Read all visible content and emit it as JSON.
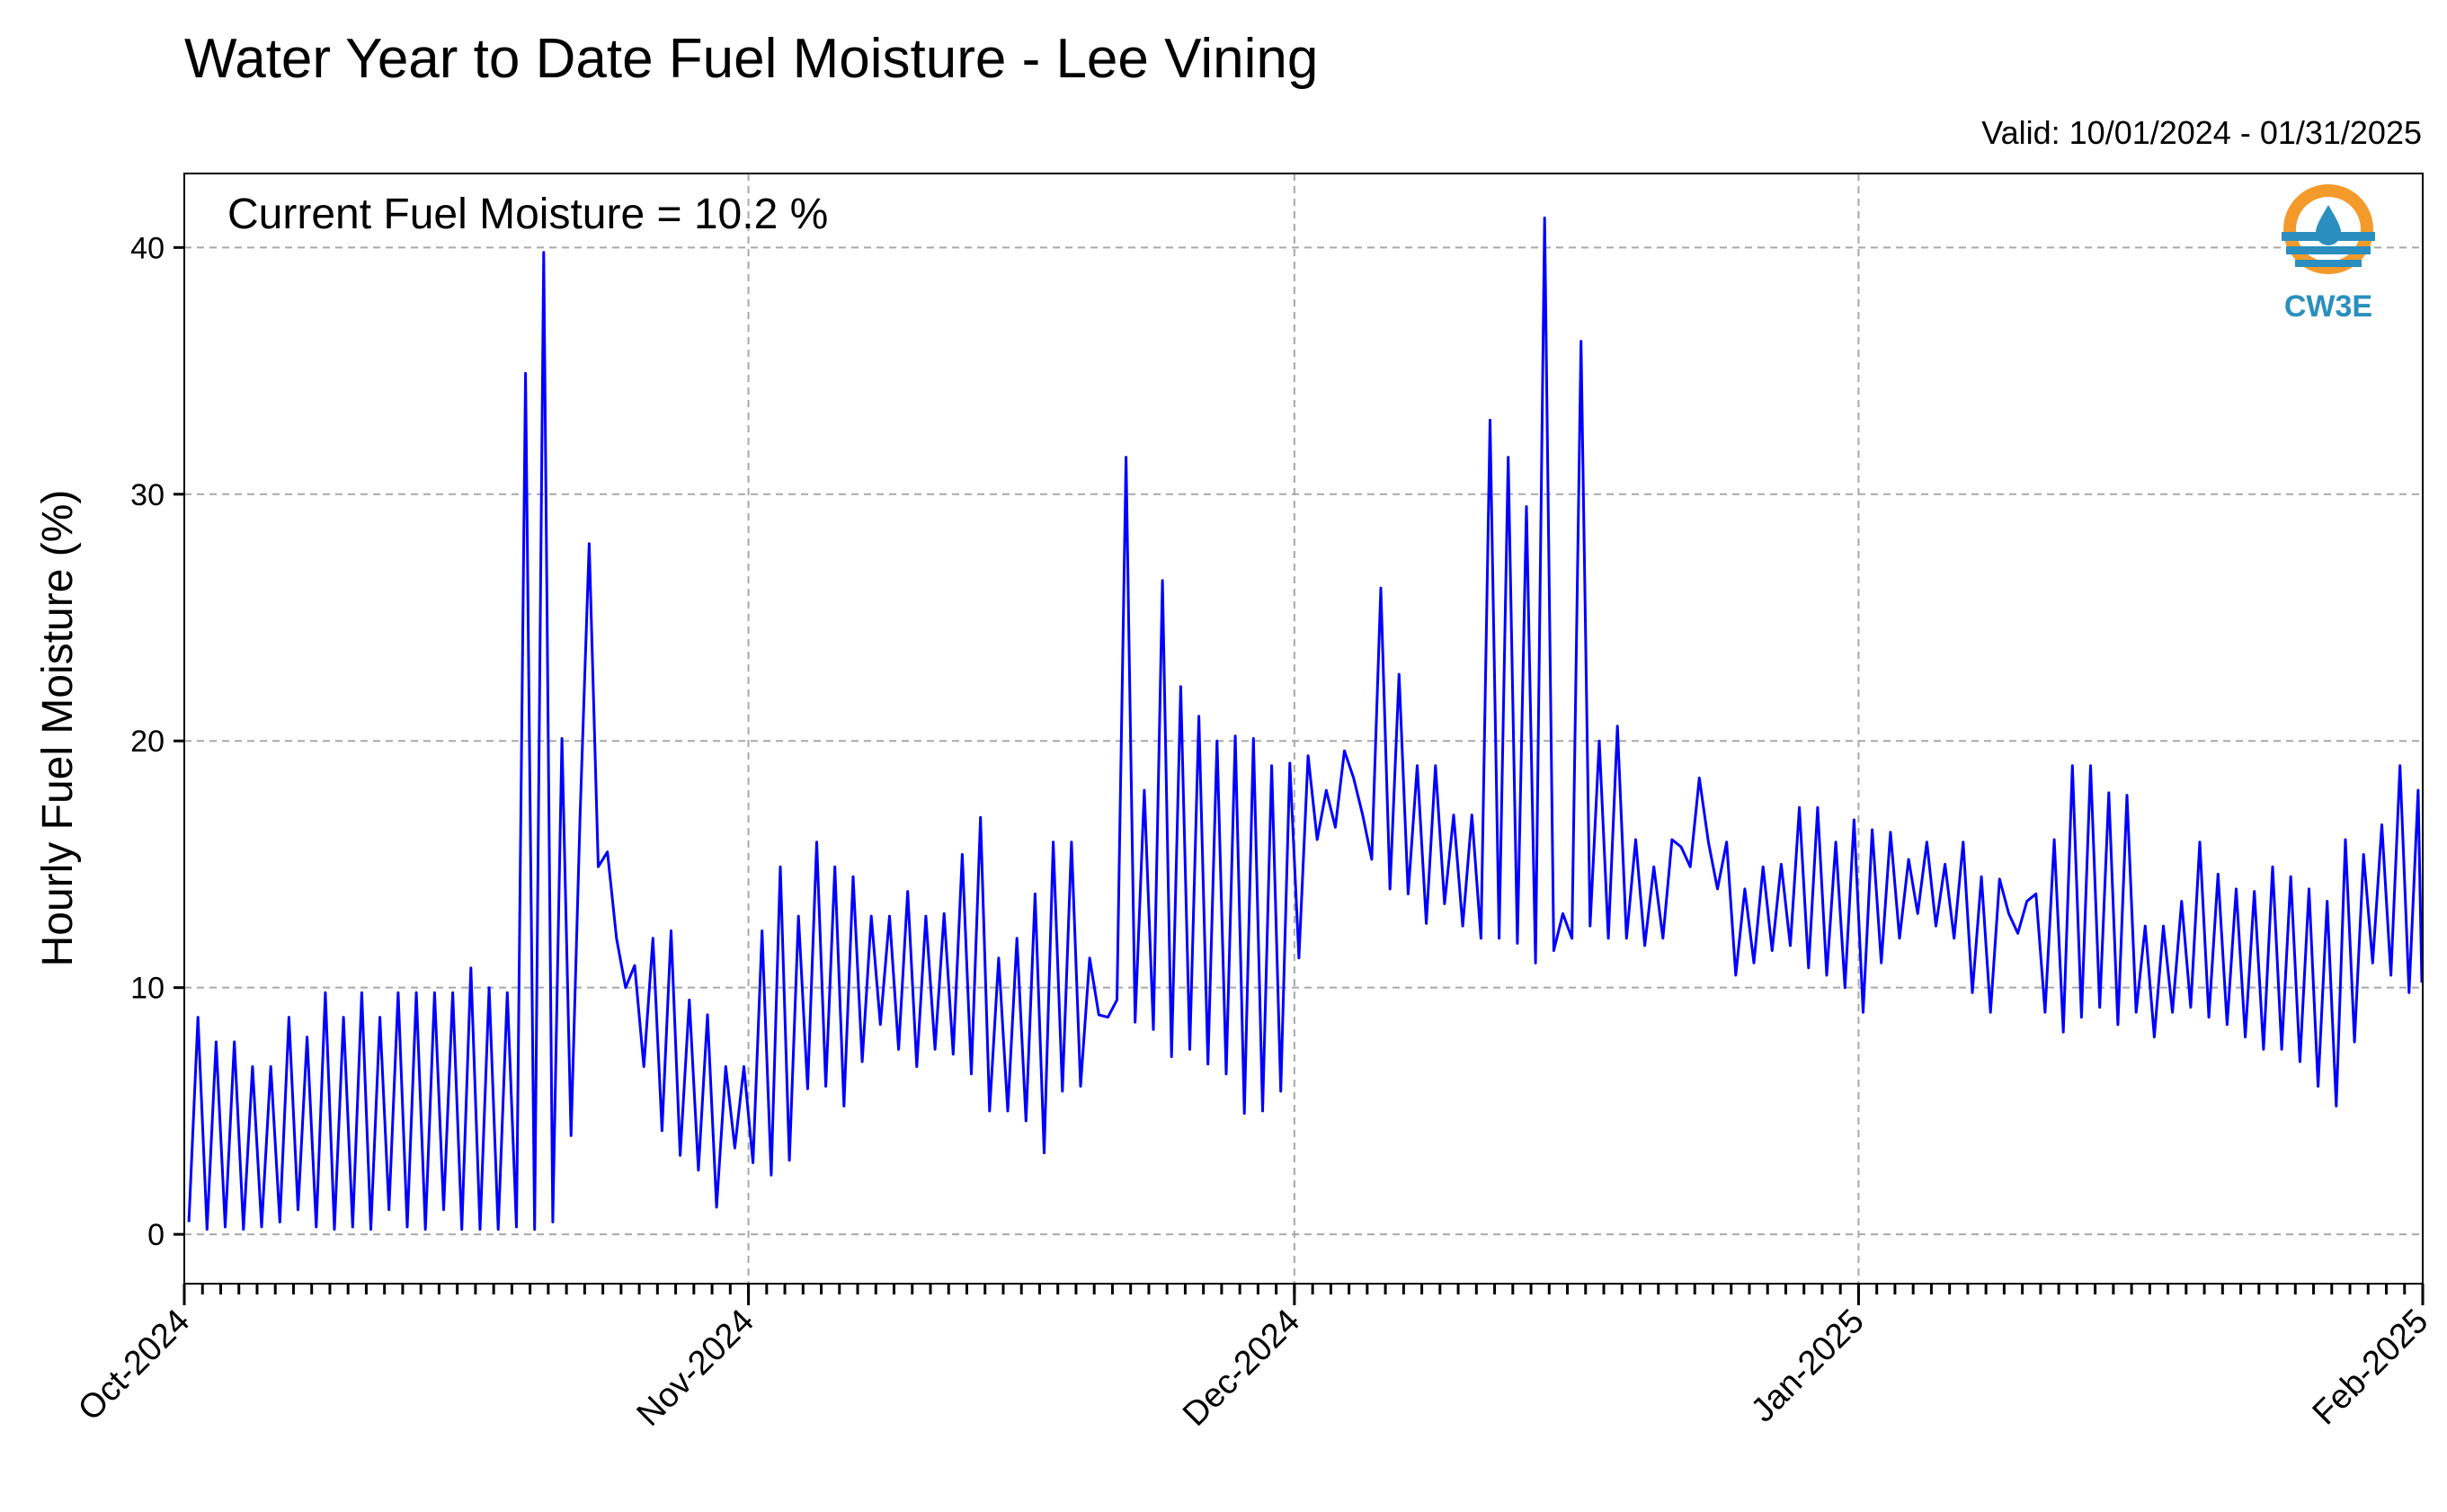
{
  "chart_data": {
    "type": "line",
    "title": "Water Year to Date Fuel Moisture - Lee Vining",
    "subtitle": "Valid: 10/01/2024 - 01/31/2025",
    "annotation": "Current Fuel Moisture = 10.2 %",
    "xlabel": "",
    "ylabel": "Hourly Fuel Moisture (%)",
    "x_range": [
      "2024-10-01",
      "2025-02-01"
    ],
    "ylim": [
      -2,
      43
    ],
    "y_ticks": [
      0,
      10,
      20,
      30,
      40
    ],
    "x_tick_labels": [
      "Oct-2024",
      "Nov-2024",
      "Dec-2024",
      "Jan-2025",
      "Feb-2025"
    ],
    "x_ticks": [
      "2024-10-01",
      "2024-11-01",
      "2024-12-01",
      "2025-01-01",
      "2025-02-01"
    ],
    "grid": true,
    "series": [
      {
        "color": "#0000ff",
        "interval": "daily range (min, max, min, max ...)",
        "x": [
          "2024-10-01",
          "2024-10-02",
          "2024-10-03",
          "2024-10-04",
          "2024-10-05",
          "2024-10-06",
          "2024-10-07",
          "2024-10-08",
          "2024-10-09",
          "2024-10-10",
          "2024-10-11",
          "2024-10-12",
          "2024-10-13",
          "2024-10-14",
          "2024-10-15",
          "2024-10-16",
          "2024-10-17",
          "2024-10-18",
          "2024-10-19",
          "2024-10-20",
          "2024-10-21",
          "2024-10-22",
          "2024-10-23",
          "2024-10-24",
          "2024-10-25",
          "2024-10-26",
          "2024-10-27",
          "2024-10-28",
          "2024-10-29",
          "2024-10-30",
          "2024-10-31",
          "2024-11-01",
          "2024-11-02",
          "2024-11-03",
          "2024-11-04",
          "2024-11-05",
          "2024-11-06",
          "2024-11-07",
          "2024-11-08",
          "2024-11-09",
          "2024-11-10",
          "2024-11-11",
          "2024-11-12",
          "2024-11-13",
          "2024-11-14",
          "2024-11-15",
          "2024-11-16",
          "2024-11-17",
          "2024-11-18",
          "2024-11-19",
          "2024-11-20",
          "2024-11-21",
          "2024-11-22",
          "2024-11-23",
          "2024-11-24",
          "2024-11-25",
          "2024-11-26",
          "2024-11-27",
          "2024-11-28",
          "2024-11-29",
          "2024-11-30",
          "2024-12-01",
          "2024-12-02",
          "2024-12-03",
          "2024-12-04",
          "2024-12-05",
          "2024-12-06",
          "2024-12-07",
          "2024-12-08",
          "2024-12-09",
          "2024-12-10",
          "2024-12-11",
          "2024-12-12",
          "2024-12-13",
          "2024-12-14",
          "2024-12-15",
          "2024-12-16",
          "2024-12-17",
          "2024-12-18",
          "2024-12-19",
          "2024-12-20",
          "2024-12-21",
          "2024-12-22",
          "2024-12-23",
          "2024-12-24",
          "2024-12-25",
          "2024-12-26",
          "2024-12-27",
          "2024-12-28",
          "2024-12-29",
          "2024-12-30",
          "2024-12-31",
          "2025-01-01",
          "2025-01-02",
          "2025-01-03",
          "2025-01-04",
          "2025-01-05",
          "2025-01-06",
          "2025-01-07",
          "2025-01-08",
          "2025-01-09",
          "2025-01-10",
          "2025-01-11",
          "2025-01-12",
          "2025-01-13",
          "2025-01-14",
          "2025-01-15",
          "2025-01-16",
          "2025-01-17",
          "2025-01-18",
          "2025-01-19",
          "2025-01-20",
          "2025-01-21",
          "2025-01-22",
          "2025-01-23",
          "2025-01-24",
          "2025-01-25",
          "2025-01-26",
          "2025-01-27",
          "2025-01-28",
          "2025-01-29",
          "2025-01-30",
          "2025-01-31"
        ],
        "daily_min": [
          0.5,
          0.2,
          0.3,
          0.2,
          0.3,
          0.5,
          1.0,
          0.3,
          0.2,
          0.3,
          0.2,
          1.0,
          0.3,
          0.2,
          1.0,
          0.2,
          0.2,
          0.2,
          0.3,
          0.2,
          0.5,
          4.0,
          28.0,
          15.5,
          10.0,
          6.8,
          4.2,
          3.2,
          2.6,
          1.1,
          3.5,
          2.9,
          2.4,
          3.0,
          5.9,
          6.0,
          5.2,
          7.0,
          8.5,
          7.5,
          6.8,
          7.5,
          7.3,
          6.5,
          5.0,
          5.0,
          4.6,
          3.3,
          5.8,
          6.0,
          8.9,
          9.5,
          8.6,
          8.3,
          7.2,
          7.5,
          6.9,
          6.5,
          4.9,
          5.0,
          5.8,
          11.2,
          16.0,
          16.5,
          18.5,
          15.2,
          14.0,
          13.8,
          12.6,
          13.4,
          12.5,
          12.0,
          12.0,
          11.8,
          11.0,
          11.5,
          12.0,
          12.5,
          12.0,
          12.0,
          11.7,
          12.0,
          15.7,
          18.5,
          14.0,
          10.5,
          11.0,
          11.5,
          11.7,
          10.8,
          10.5,
          10.0,
          9.0,
          11.0,
          12.0,
          13.0,
          12.5,
          12.0,
          9.8,
          9.0,
          13.0,
          13.5,
          9.0,
          8.2,
          8.8,
          9.2,
          8.5,
          9.0,
          8.0,
          9.0,
          9.2,
          8.8,
          8.5,
          8.0,
          7.5,
          7.5,
          7.0,
          6.0,
          5.2,
          7.8,
          11.0,
          10.5,
          9.8
        ],
        "daily_max": [
          8.8,
          7.8,
          7.8,
          6.8,
          6.8,
          8.8,
          8.0,
          9.8,
          8.8,
          9.8,
          8.8,
          9.8,
          9.8,
          9.8,
          9.8,
          10.8,
          10.0,
          9.8,
          34.9,
          39.8,
          20.1,
          17.0,
          14.9,
          12.0,
          10.9,
          12.0,
          12.3,
          9.5,
          8.9,
          6.8,
          6.8,
          12.3,
          14.9,
          12.9,
          15.9,
          14.9,
          14.5,
          12.9,
          12.9,
          13.9,
          12.9,
          13.0,
          15.4,
          16.9,
          11.2,
          12.0,
          13.8,
          15.9,
          15.9,
          11.2,
          8.8,
          31.5,
          18.0,
          26.5,
          22.2,
          21.0,
          20.0,
          20.2,
          20.1,
          19.0,
          19.1,
          19.4,
          18.0,
          19.6,
          17.0,
          26.2,
          22.7,
          19.0,
          19.0,
          17.0,
          17.0,
          33.0,
          31.5,
          29.5,
          41.2,
          13.0,
          36.2,
          20.0,
          20.6,
          16.0,
          14.9,
          16.0,
          14.9,
          15.9,
          15.9,
          14.0,
          14.9,
          15.0,
          17.3,
          17.3,
          15.9,
          16.8,
          16.4,
          16.3,
          15.2,
          15.9,
          15.0,
          15.9,
          14.5,
          14.4,
          12.2,
          13.8,
          16.0,
          19.0,
          19.0,
          17.9,
          17.8,
          12.5,
          12.5,
          13.5,
          15.9,
          14.6,
          14.0,
          13.9,
          14.9,
          14.5,
          14.0,
          13.5,
          16.0,
          15.4,
          16.6,
          19.0,
          18.0
        ],
        "final_value": 10.2
      }
    ]
  }
}
